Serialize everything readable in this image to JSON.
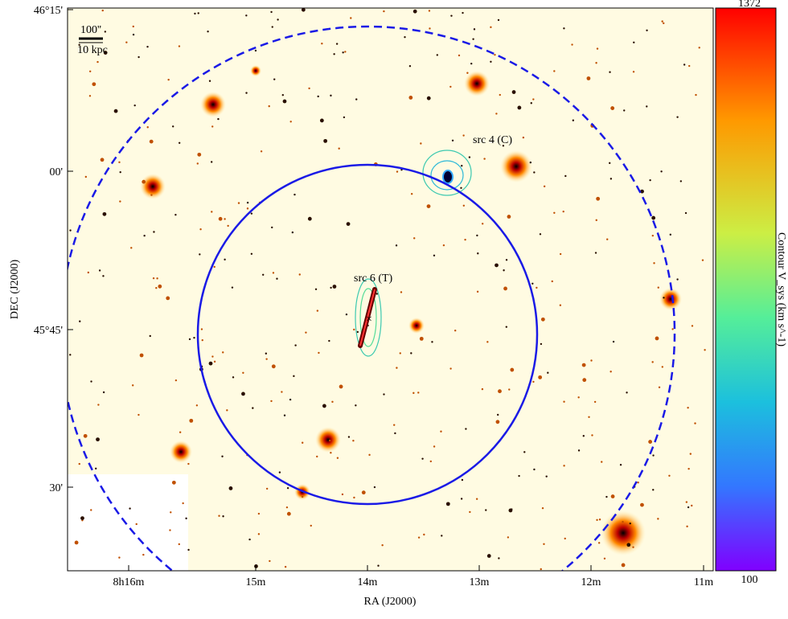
{
  "x_axis": {
    "label": "RA (J2000)",
    "ticks": [
      "8h16m",
      "15m",
      "14m",
      "13m",
      "12m",
      "11m"
    ]
  },
  "y_axis": {
    "label": "DEC (J2000)",
    "ticks": [
      "46°15'",
      "00'",
      "45°45'",
      "30'"
    ]
  },
  "scale_bar": {
    "angle": "100''",
    "distance": "10 kpc"
  },
  "annotations": [
    "src 4 (C)",
    "src 6 (T)"
  ],
  "colorbar": {
    "label": "Contour V_sys (km s^-1)",
    "max": "1372",
    "min": "100"
  }
}
